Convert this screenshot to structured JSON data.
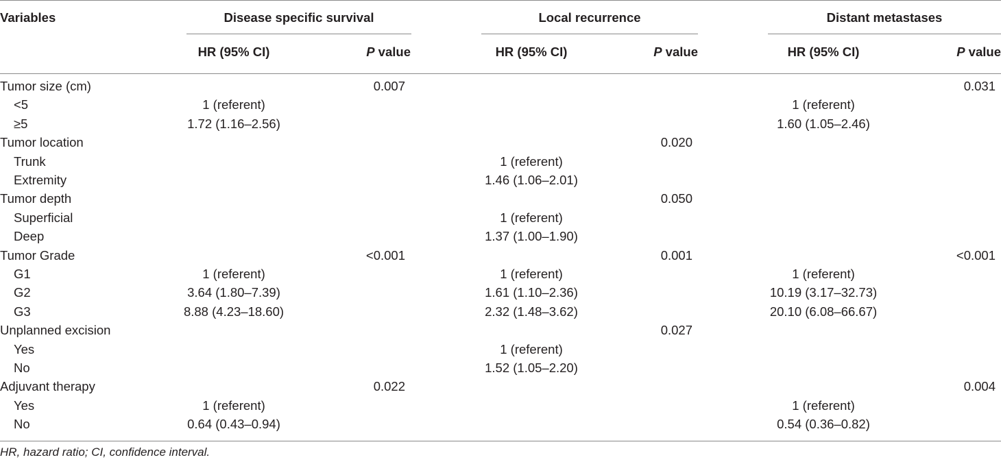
{
  "table": {
    "header": {
      "variables": "Variables",
      "groups": [
        {
          "label": "Disease specific survival"
        },
        {
          "label": "Local recurrence"
        },
        {
          "label": "Distant metastases"
        }
      ],
      "hr_label": "HR (95% CI)",
      "p_italic": "P",
      "p_rest": " value"
    },
    "rows": [
      {
        "label": "Tumor size (cm)",
        "indent": false,
        "dss_hr": "",
        "dss_p": "0.007",
        "lr_hr": "",
        "lr_p": "",
        "dm_hr": "",
        "dm_p": "0.031"
      },
      {
        "label": "<5",
        "indent": true,
        "dss_hr": "1 (referent)",
        "dss_p": "",
        "lr_hr": "",
        "lr_p": "",
        "dm_hr": "1 (referent)",
        "dm_p": ""
      },
      {
        "label": "≥5",
        "indent": true,
        "dss_hr": "1.72 (1.16–2.56)",
        "dss_p": "",
        "lr_hr": "",
        "lr_p": "",
        "dm_hr": "1.60 (1.05–2.46)",
        "dm_p": ""
      },
      {
        "label": "Tumor location",
        "indent": false,
        "dss_hr": "",
        "dss_p": "",
        "lr_hr": "",
        "lr_p": "0.020",
        "dm_hr": "",
        "dm_p": ""
      },
      {
        "label": "Trunk",
        "indent": true,
        "dss_hr": "",
        "dss_p": "",
        "lr_hr": "1 (referent)",
        "lr_p": "",
        "dm_hr": "",
        "dm_p": ""
      },
      {
        "label": "Extremity",
        "indent": true,
        "dss_hr": "",
        "dss_p": "",
        "lr_hr": "1.46 (1.06–2.01)",
        "lr_p": "",
        "dm_hr": "",
        "dm_p": ""
      },
      {
        "label": "Tumor depth",
        "indent": false,
        "dss_hr": "",
        "dss_p": "",
        "lr_hr": "",
        "lr_p": "0.050",
        "dm_hr": "",
        "dm_p": ""
      },
      {
        "label": "Superficial",
        "indent": true,
        "dss_hr": "",
        "dss_p": "",
        "lr_hr": "1 (referent)",
        "lr_p": "",
        "dm_hr": "",
        "dm_p": ""
      },
      {
        "label": "Deep",
        "indent": true,
        "dss_hr": "",
        "dss_p": "",
        "lr_hr": "1.37 (1.00–1.90)",
        "lr_p": "",
        "dm_hr": "",
        "dm_p": ""
      },
      {
        "label": "Tumor Grade",
        "indent": false,
        "dss_hr": "",
        "dss_p": "<0.001",
        "lr_hr": "",
        "lr_p": "0.001",
        "dm_hr": "",
        "dm_p": "<0.001"
      },
      {
        "label": "G1",
        "indent": true,
        "dss_hr": "1 (referent)",
        "dss_p": "",
        "lr_hr": "1 (referent)",
        "lr_p": "",
        "dm_hr": "1 (referent)",
        "dm_p": ""
      },
      {
        "label": "G2",
        "indent": true,
        "dss_hr": "3.64 (1.80–7.39)",
        "dss_p": "",
        "lr_hr": "1.61 (1.10–2.36)",
        "lr_p": "",
        "dm_hr": "10.19 (3.17–32.73)",
        "dm_p": ""
      },
      {
        "label": "G3",
        "indent": true,
        "dss_hr": "8.88 (4.23–18.60)",
        "dss_p": "",
        "lr_hr": "2.32 (1.48–3.62)",
        "lr_p": "",
        "dm_hr": "20.10 (6.08–66.67)",
        "dm_p": ""
      },
      {
        "label": "Unplanned excision",
        "indent": false,
        "dss_hr": "",
        "dss_p": "",
        "lr_hr": "",
        "lr_p": "0.027",
        "dm_hr": "",
        "dm_p": ""
      },
      {
        "label": "Yes",
        "indent": true,
        "dss_hr": "",
        "dss_p": "",
        "lr_hr": "1 (referent)",
        "lr_p": "",
        "dm_hr": "",
        "dm_p": ""
      },
      {
        "label": "No",
        "indent": true,
        "dss_hr": "",
        "dss_p": "",
        "lr_hr": "1.52 (1.05–2.20)",
        "lr_p": "",
        "dm_hr": "",
        "dm_p": ""
      },
      {
        "label": "Adjuvant therapy",
        "indent": false,
        "dss_hr": "",
        "dss_p": "0.022",
        "lr_hr": "",
        "lr_p": "",
        "dm_hr": "",
        "dm_p": "0.004"
      },
      {
        "label": "Yes",
        "indent": true,
        "dss_hr": "1 (referent)",
        "dss_p": "",
        "lr_hr": "",
        "lr_p": "",
        "dm_hr": "1 (referent)",
        "dm_p": ""
      },
      {
        "label": "No",
        "indent": true,
        "dss_hr": "0.64 (0.43–0.94)",
        "dss_p": "",
        "lr_hr": "",
        "lr_p": "",
        "dm_hr": "0.54 (0.36–0.82)",
        "dm_p": ""
      }
    ]
  },
  "footnote": "HR, hazard ratio; CI, confidence interval.",
  "colors": {
    "text": "#231f20",
    "rule": "#8a8a8a"
  }
}
